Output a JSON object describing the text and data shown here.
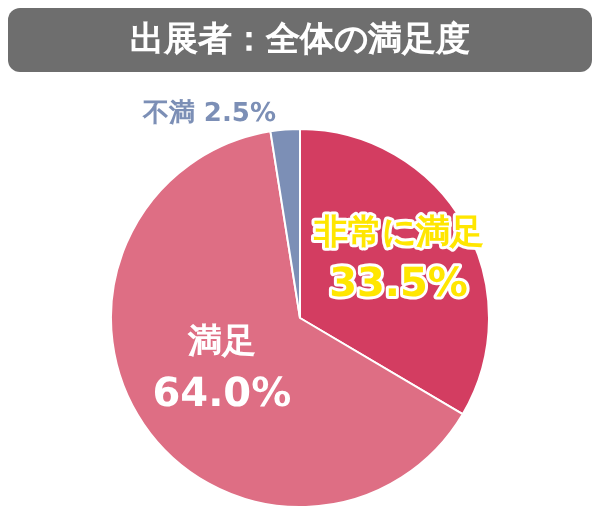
{
  "chart_data": {
    "type": "pie",
    "title": "出展者：全体の満足度",
    "categories": [
      "非常に満足",
      "満足",
      "不満"
    ],
    "values": [
      33.5,
      64.0,
      2.5
    ],
    "colors": [
      "#d33d61",
      "#de6e84",
      "#7c8fb6"
    ],
    "value_labels": [
      "33.5%",
      "64.0%",
      "2.5%"
    ],
    "legend": false
  }
}
